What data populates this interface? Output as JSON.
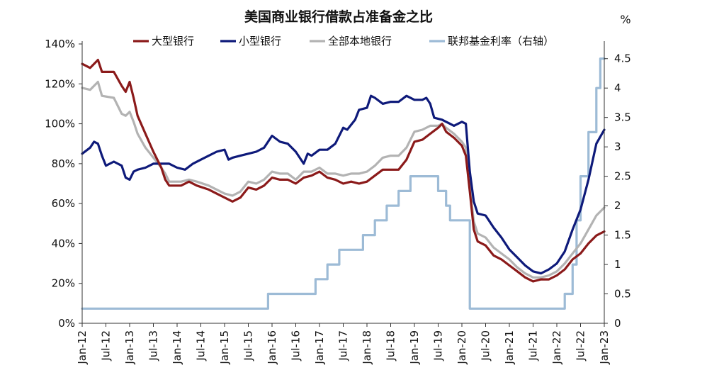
{
  "chart_data": {
    "type": "line",
    "title": "美国商业银行借款占准备金之比",
    "right_unit": "%",
    "x_tick_labels": [
      "Jan-12",
      "Jul-12",
      "Jan-13",
      "Jul-13",
      "Jan-14",
      "Jul-14",
      "Jan-15",
      "Jul-15",
      "Jan-16",
      "Jul-16",
      "Jan-17",
      "Jul-17",
      "Jan-18",
      "Jul-18",
      "Jan-19",
      "Jul-19",
      "Jan-20",
      "Jul-20",
      "Jan-21",
      "Jul-21",
      "Jan-22",
      "Jul-22",
      "Jan-23"
    ],
    "x_range": [
      "2012-01",
      "2023-01"
    ],
    "y_left": {
      "ylim": [
        0,
        140
      ],
      "ticks": [
        0,
        20,
        40,
        60,
        80,
        100,
        120,
        140
      ],
      "tick_labels": [
        "0%",
        "20%",
        "40%",
        "60%",
        "80%",
        "100%",
        "120%",
        "140%"
      ]
    },
    "y_right": {
      "ylim": [
        0,
        4.75
      ],
      "ticks": [
        0,
        0.5,
        1,
        1.5,
        2,
        2.5,
        3,
        3.5,
        4,
        4.5
      ],
      "tick_labels": [
        "0",
        "0.5",
        "1",
        "1.5",
        "2",
        "2.5",
        "3",
        "3.5",
        "4",
        "4.5"
      ]
    },
    "legend_position": "top",
    "series": [
      {
        "name": "大型银行",
        "axis": "left",
        "color": "#8b1a1a",
        "points": [
          [
            "2012-01",
            130
          ],
          [
            "2012-03",
            128
          ],
          [
            "2012-05",
            132
          ],
          [
            "2012-06",
            126
          ],
          [
            "2012-09",
            126
          ],
          [
            "2012-11",
            119
          ],
          [
            "2012-12",
            116
          ],
          [
            "2013-01",
            121
          ],
          [
            "2013-02",
            113
          ],
          [
            "2013-03",
            104
          ],
          [
            "2013-05",
            95
          ],
          [
            "2013-07",
            86
          ],
          [
            "2013-09",
            78
          ],
          [
            "2013-10",
            72
          ],
          [
            "2013-11",
            69
          ],
          [
            "2014-02",
            69
          ],
          [
            "2014-04",
            71
          ],
          [
            "2014-06",
            69
          ],
          [
            "2014-09",
            67
          ],
          [
            "2014-11",
            65
          ],
          [
            "2015-01",
            63
          ],
          [
            "2015-03",
            61
          ],
          [
            "2015-05",
            63
          ],
          [
            "2015-07",
            68
          ],
          [
            "2015-09",
            67
          ],
          [
            "2015-11",
            69
          ],
          [
            "2016-01",
            73
          ],
          [
            "2016-03",
            72
          ],
          [
            "2016-05",
            72
          ],
          [
            "2016-07",
            70
          ],
          [
            "2016-09",
            73
          ],
          [
            "2016-11",
            74
          ],
          [
            "2017-01",
            76
          ],
          [
            "2017-03",
            73
          ],
          [
            "2017-05",
            72
          ],
          [
            "2017-07",
            70
          ],
          [
            "2017-09",
            71
          ],
          [
            "2017-11",
            70
          ],
          [
            "2018-01",
            71
          ],
          [
            "2018-03",
            74
          ],
          [
            "2018-05",
            77
          ],
          [
            "2018-07",
            77
          ],
          [
            "2018-09",
            77
          ],
          [
            "2018-11",
            82
          ],
          [
            "2019-01",
            91
          ],
          [
            "2019-03",
            92
          ],
          [
            "2019-05",
            95
          ],
          [
            "2019-07",
            98
          ],
          [
            "2019-08",
            100
          ],
          [
            "2019-09",
            96
          ],
          [
            "2019-11",
            93
          ],
          [
            "2020-01",
            89
          ],
          [
            "2020-02",
            84
          ],
          [
            "2020-03",
            66
          ],
          [
            "2020-04",
            47
          ],
          [
            "2020-05",
            41
          ],
          [
            "2020-07",
            39
          ],
          [
            "2020-09",
            34
          ],
          [
            "2020-11",
            32
          ],
          [
            "2021-01",
            29
          ],
          [
            "2021-03",
            26
          ],
          [
            "2021-05",
            23
          ],
          [
            "2021-07",
            21
          ],
          [
            "2021-09",
            22
          ],
          [
            "2021-11",
            22
          ],
          [
            "2022-01",
            24
          ],
          [
            "2022-03",
            27
          ],
          [
            "2022-05",
            32
          ],
          [
            "2022-07",
            35
          ],
          [
            "2022-09",
            40
          ],
          [
            "2022-11",
            44
          ],
          [
            "2023-01",
            46
          ]
        ]
      },
      {
        "name": "小型银行",
        "axis": "left",
        "color": "#0e1a7a",
        "points": [
          [
            "2012-01",
            85
          ],
          [
            "2012-03",
            88
          ],
          [
            "2012-04",
            91
          ],
          [
            "2012-05",
            90
          ],
          [
            "2012-06",
            84
          ],
          [
            "2012-07",
            79
          ],
          [
            "2012-09",
            81
          ],
          [
            "2012-11",
            79
          ],
          [
            "2012-12",
            73
          ],
          [
            "2013-01",
            72
          ],
          [
            "2013-02",
            76
          ],
          [
            "2013-03",
            77
          ],
          [
            "2013-05",
            78
          ],
          [
            "2013-07",
            80
          ],
          [
            "2013-09",
            80
          ],
          [
            "2013-11",
            80
          ],
          [
            "2014-01",
            78
          ],
          [
            "2014-03",
            77
          ],
          [
            "2014-05",
            80
          ],
          [
            "2014-07",
            82
          ],
          [
            "2014-09",
            84
          ],
          [
            "2014-11",
            86
          ],
          [
            "2015-01",
            87
          ],
          [
            "2015-02",
            82
          ],
          [
            "2015-03",
            83
          ],
          [
            "2015-05",
            84
          ],
          [
            "2015-07",
            85
          ],
          [
            "2015-09",
            86
          ],
          [
            "2015-11",
            88
          ],
          [
            "2016-01",
            94
          ],
          [
            "2016-03",
            91
          ],
          [
            "2016-05",
            90
          ],
          [
            "2016-07",
            86
          ],
          [
            "2016-09",
            80
          ],
          [
            "2016-10",
            85
          ],
          [
            "2016-11",
            84
          ],
          [
            "2017-01",
            87
          ],
          [
            "2017-03",
            87
          ],
          [
            "2017-05",
            90
          ],
          [
            "2017-07",
            98
          ],
          [
            "2017-08",
            97
          ],
          [
            "2017-10",
            102
          ],
          [
            "2017-11",
            107
          ],
          [
            "2018-01",
            108
          ],
          [
            "2018-02",
            114
          ],
          [
            "2018-03",
            113
          ],
          [
            "2018-05",
            110
          ],
          [
            "2018-07",
            111
          ],
          [
            "2018-09",
            111
          ],
          [
            "2018-11",
            114
          ],
          [
            "2019-01",
            112
          ],
          [
            "2019-03",
            112
          ],
          [
            "2019-04",
            113
          ],
          [
            "2019-05",
            110
          ],
          [
            "2019-06",
            103
          ],
          [
            "2019-08",
            102
          ],
          [
            "2019-09",
            101
          ],
          [
            "2019-11",
            99
          ],
          [
            "2020-01",
            101
          ],
          [
            "2020-02",
            100
          ],
          [
            "2020-03",
            76
          ],
          [
            "2020-04",
            61
          ],
          [
            "2020-05",
            55
          ],
          [
            "2020-07",
            54
          ],
          [
            "2020-09",
            48
          ],
          [
            "2020-11",
            43
          ],
          [
            "2021-01",
            37
          ],
          [
            "2021-03",
            33
          ],
          [
            "2021-05",
            29
          ],
          [
            "2021-07",
            26
          ],
          [
            "2021-09",
            25
          ],
          [
            "2021-11",
            27
          ],
          [
            "2022-01",
            30
          ],
          [
            "2022-03",
            36
          ],
          [
            "2022-05",
            47
          ],
          [
            "2022-07",
            57
          ],
          [
            "2022-09",
            72
          ],
          [
            "2022-11",
            90
          ],
          [
            "2023-01",
            97
          ]
        ]
      },
      {
        "name": "全部本地银行",
        "axis": "left",
        "color": "#b3b3b3",
        "points": [
          [
            "2012-01",
            118
          ],
          [
            "2012-03",
            117
          ],
          [
            "2012-05",
            121
          ],
          [
            "2012-06",
            114
          ],
          [
            "2012-09",
            113
          ],
          [
            "2012-11",
            105
          ],
          [
            "2012-12",
            104
          ],
          [
            "2013-01",
            106
          ],
          [
            "2013-02",
            101
          ],
          [
            "2013-03",
            95
          ],
          [
            "2013-05",
            88
          ],
          [
            "2013-07",
            83
          ],
          [
            "2013-09",
            78
          ],
          [
            "2013-10",
            75
          ],
          [
            "2013-11",
            71
          ],
          [
            "2014-02",
            71
          ],
          [
            "2014-04",
            72
          ],
          [
            "2014-06",
            71
          ],
          [
            "2014-09",
            69
          ],
          [
            "2014-11",
            67
          ],
          [
            "2015-01",
            65
          ],
          [
            "2015-03",
            64
          ],
          [
            "2015-05",
            66
          ],
          [
            "2015-07",
            71
          ],
          [
            "2015-09",
            70
          ],
          [
            "2015-11",
            72
          ],
          [
            "2016-01",
            76
          ],
          [
            "2016-03",
            75
          ],
          [
            "2016-05",
            75
          ],
          [
            "2016-07",
            72
          ],
          [
            "2016-09",
            76
          ],
          [
            "2016-11",
            76
          ],
          [
            "2017-01",
            78
          ],
          [
            "2017-03",
            75
          ],
          [
            "2017-05",
            75
          ],
          [
            "2017-07",
            74
          ],
          [
            "2017-09",
            75
          ],
          [
            "2017-11",
            75
          ],
          [
            "2018-01",
            76
          ],
          [
            "2018-03",
            79
          ],
          [
            "2018-05",
            83
          ],
          [
            "2018-07",
            84
          ],
          [
            "2018-09",
            84
          ],
          [
            "2018-11",
            88
          ],
          [
            "2019-01",
            96
          ],
          [
            "2019-03",
            97
          ],
          [
            "2019-05",
            99
          ],
          [
            "2019-07",
            99
          ],
          [
            "2019-08",
            100
          ],
          [
            "2019-09",
            98
          ],
          [
            "2019-11",
            95
          ],
          [
            "2020-01",
            91
          ],
          [
            "2020-02",
            88
          ],
          [
            "2020-03",
            68
          ],
          [
            "2020-04",
            51
          ],
          [
            "2020-05",
            45
          ],
          [
            "2020-07",
            43
          ],
          [
            "2020-09",
            38
          ],
          [
            "2020-11",
            35
          ],
          [
            "2021-01",
            32
          ],
          [
            "2021-03",
            28
          ],
          [
            "2021-05",
            25
          ],
          [
            "2021-07",
            23
          ],
          [
            "2021-09",
            23
          ],
          [
            "2021-11",
            24
          ],
          [
            "2022-01",
            26
          ],
          [
            "2022-03",
            30
          ],
          [
            "2022-05",
            35
          ],
          [
            "2022-07",
            40
          ],
          [
            "2022-09",
            47
          ],
          [
            "2022-11",
            54
          ],
          [
            "2023-01",
            58
          ]
        ]
      },
      {
        "name": "联邦基金利率（右轴）",
        "axis": "right",
        "color": "#9dbbd6",
        "points": [
          [
            "2012-01",
            0.25
          ],
          [
            "2015-12",
            0.25
          ],
          [
            "2015-12",
            0.5
          ],
          [
            "2016-12",
            0.5
          ],
          [
            "2016-12",
            0.75
          ],
          [
            "2017-03",
            0.75
          ],
          [
            "2017-03",
            1.0
          ],
          [
            "2017-06",
            1.0
          ],
          [
            "2017-06",
            1.25
          ],
          [
            "2017-12",
            1.25
          ],
          [
            "2017-12",
            1.5
          ],
          [
            "2018-03",
            1.5
          ],
          [
            "2018-03",
            1.75
          ],
          [
            "2018-06",
            1.75
          ],
          [
            "2018-06",
            2.0
          ],
          [
            "2018-09",
            2.0
          ],
          [
            "2018-09",
            2.25
          ],
          [
            "2018-12",
            2.25
          ],
          [
            "2018-12",
            2.5
          ],
          [
            "2019-07",
            2.5
          ],
          [
            "2019-07",
            2.25
          ],
          [
            "2019-09",
            2.25
          ],
          [
            "2019-09",
            2.0
          ],
          [
            "2019-10",
            2.0
          ],
          [
            "2019-10",
            1.75
          ],
          [
            "2020-03",
            1.75
          ],
          [
            "2020-03",
            0.25
          ],
          [
            "2022-03",
            0.25
          ],
          [
            "2022-03",
            0.5
          ],
          [
            "2022-05",
            0.5
          ],
          [
            "2022-05",
            1.0
          ],
          [
            "2022-06",
            1.0
          ],
          [
            "2022-06",
            1.75
          ],
          [
            "2022-07",
            1.75
          ],
          [
            "2022-07",
            2.5
          ],
          [
            "2022-09",
            2.5
          ],
          [
            "2022-09",
            3.25
          ],
          [
            "2022-11",
            3.25
          ],
          [
            "2022-11",
            4.0
          ],
          [
            "2022-12",
            4.0
          ],
          [
            "2022-12",
            4.5
          ],
          [
            "2023-01",
            4.5
          ]
        ]
      }
    ]
  }
}
